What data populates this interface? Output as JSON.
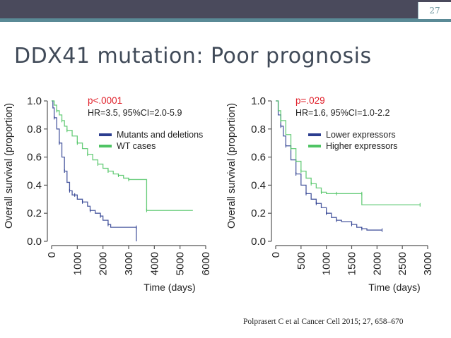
{
  "header": {
    "page_number": "27"
  },
  "title": "DDX41 mutation: Poor prognosis",
  "citation": "Polprasert C et al Cancer Cell 2015; 27, 658–670",
  "chart_data": [
    {
      "type": "line",
      "ylabel": "Overall survival (proportion)",
      "xlabel": "Time (days)",
      "xlim": [
        0,
        6000
      ],
      "ylim": [
        0,
        1
      ],
      "xticks": [
        "0",
        "1000",
        "2000",
        "3000",
        "4000",
        "5000",
        "6000"
      ],
      "yticks": [
        "0.0",
        "0.2",
        "0.4",
        "0.6",
        "0.8",
        "1.0"
      ],
      "pvalue": "p<.0001",
      "hr": "HR=3.5, 95%CI=2.0-5.9",
      "legend_position": "top-right",
      "grid": false,
      "series": [
        {
          "name": "Mutants and deletions",
          "color": "#2b3d8f",
          "x": [
            0,
            50,
            100,
            200,
            300,
            400,
            500,
            600,
            700,
            800,
            900,
            1000,
            1200,
            1400,
            1500,
            1700,
            1900,
            2000,
            2200,
            2300,
            3300,
            3300
          ],
          "y": [
            1.0,
            0.95,
            0.88,
            0.8,
            0.7,
            0.6,
            0.5,
            0.42,
            0.36,
            0.33,
            0.33,
            0.3,
            0.28,
            0.25,
            0.22,
            0.2,
            0.18,
            0.15,
            0.12,
            0.1,
            0.1,
            0.0
          ]
        },
        {
          "name": "WT cases",
          "color": "#4fc464",
          "x": [
            0,
            100,
            200,
            300,
            400,
            500,
            600,
            800,
            1000,
            1200,
            1400,
            1600,
            1800,
            2000,
            2200,
            2400,
            2600,
            2800,
            3000,
            3700,
            3700,
            5500
          ],
          "y": [
            1.0,
            0.97,
            0.93,
            0.9,
            0.86,
            0.82,
            0.79,
            0.75,
            0.7,
            0.66,
            0.62,
            0.58,
            0.55,
            0.52,
            0.5,
            0.48,
            0.47,
            0.45,
            0.44,
            0.44,
            0.22,
            0.22
          ]
        }
      ]
    },
    {
      "type": "line",
      "ylabel": "Overall survival (proportion)",
      "xlabel": "Time (days)",
      "xlim": [
        0,
        3000
      ],
      "ylim": [
        0,
        1
      ],
      "xticks": [
        "0",
        "500",
        "1000",
        "1500",
        "2000",
        "2500",
        "3000"
      ],
      "yticks": [
        "0.0",
        "0.2",
        "0.4",
        "0.6",
        "0.8",
        "1.0"
      ],
      "pvalue": "p=.029",
      "hr": "HR=1.6, 95%CI=1.0-2.2",
      "legend_position": "top-right",
      "grid": false,
      "series": [
        {
          "name": "Lower   expressors",
          "color": "#2b3d8f",
          "x": [
            0,
            50,
            100,
            150,
            200,
            300,
            400,
            500,
            600,
            700,
            800,
            900,
            1000,
            1100,
            1200,
            1300,
            1500,
            1600,
            1700,
            1800,
            2100
          ],
          "y": [
            1.0,
            0.9,
            0.82,
            0.75,
            0.68,
            0.58,
            0.48,
            0.4,
            0.34,
            0.3,
            0.27,
            0.24,
            0.2,
            0.17,
            0.15,
            0.14,
            0.12,
            0.1,
            0.09,
            0.08,
            0.08
          ]
        },
        {
          "name": "Higher   expressors",
          "color": "#4fc464",
          "x": [
            0,
            50,
            100,
            200,
            300,
            400,
            500,
            600,
            700,
            800,
            900,
            1000,
            1200,
            1400,
            1700,
            1700,
            2850
          ],
          "y": [
            1.0,
            0.93,
            0.86,
            0.76,
            0.66,
            0.57,
            0.5,
            0.45,
            0.41,
            0.38,
            0.35,
            0.34,
            0.34,
            0.34,
            0.34,
            0.26,
            0.26
          ]
        }
      ]
    }
  ]
}
